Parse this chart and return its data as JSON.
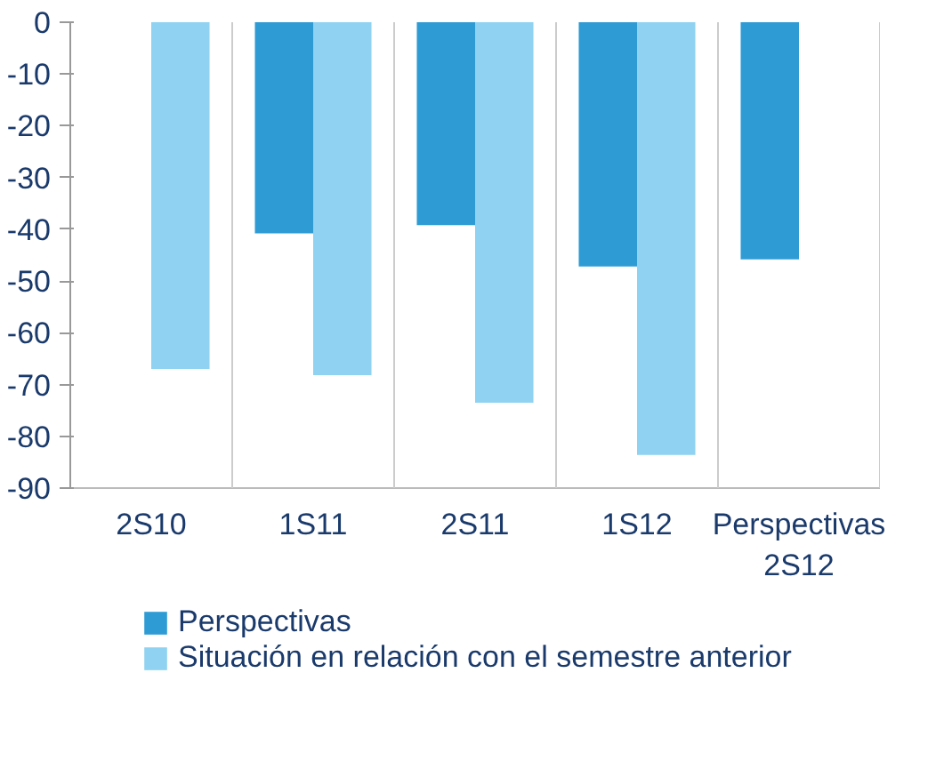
{
  "chart_data": {
    "type": "bar",
    "categories": [
      "2S10",
      "1S11",
      "2S11",
      "1S12",
      "Perspectivas 2S12"
    ],
    "series": [
      {
        "name": "Perspectivas",
        "color": "#2f9bd5",
        "values": [
          null,
          -40.8,
          -39.2,
          -47.2,
          -45.8
        ]
      },
      {
        "name": "Situación en relación con el semestre anterior",
        "color": "#8fd2f1",
        "values": [
          -67,
          -68.2,
          -73.5,
          -83.6,
          null
        ]
      }
    ],
    "ylim": [
      -90,
      0
    ],
    "yticks": [
      0,
      -10,
      -20,
      -30,
      -40,
      -50,
      -60,
      -70,
      -80,
      -90
    ],
    "grid": "x",
    "legend": "bottom"
  }
}
